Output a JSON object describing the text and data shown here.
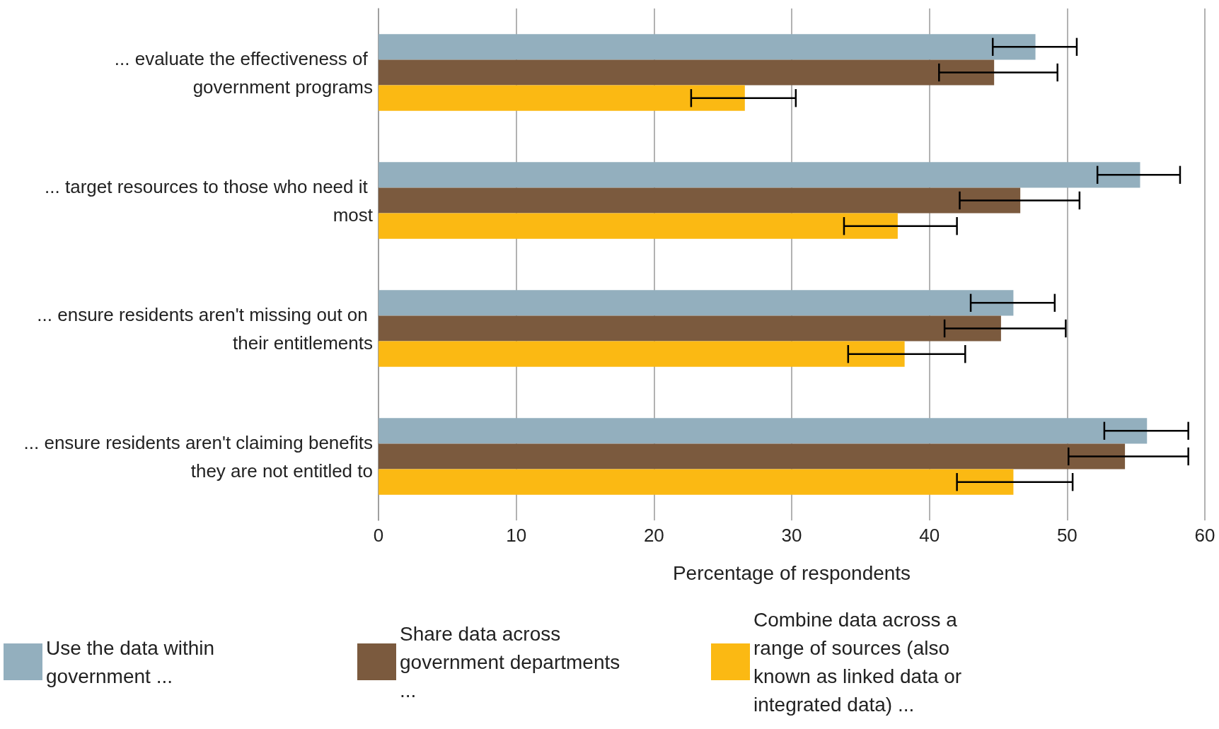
{
  "chart_data": {
    "type": "bar",
    "orientation": "horizontal",
    "xlabel": "Percentage of respondents",
    "categories": [
      "... evaluate the effectiveness of government programs",
      "... target resources to those who need it most",
      "... ensure residents aren't missing out on their entitlements",
      "... ensure residents aren't claiming benefits they are not entitled to"
    ],
    "series": [
      {
        "name": "Use the data within government ...",
        "color": "#93afbe",
        "values": [
          47.7,
          55.3,
          46.1,
          55.8
        ],
        "errors": [
          [
            44.6,
            50.7
          ],
          [
            52.2,
            58.2
          ],
          [
            43.0,
            49.1
          ],
          [
            52.7,
            58.8
          ]
        ]
      },
      {
        "name": "Share data across government departments ...",
        "color": "#7b5a3e",
        "values": [
          44.7,
          46.6,
          45.2,
          54.2
        ],
        "errors": [
          [
            40.7,
            49.3
          ],
          [
            42.2,
            50.9
          ],
          [
            41.1,
            49.9
          ],
          [
            50.1,
            58.8
          ]
        ]
      },
      {
        "name": "Combine data across a range of sources (also known as linked data or integrated data) ...",
        "color": "#fbb913",
        "values": [
          26.6,
          37.7,
          38.2,
          46.1
        ],
        "errors": [
          [
            22.7,
            30.3
          ],
          [
            33.8,
            42.0
          ],
          [
            34.1,
            42.6
          ],
          [
            42.0,
            50.4
          ]
        ]
      }
    ],
    "xlim": [
      0,
      60
    ],
    "xticks": [
      0,
      10,
      20,
      30,
      40,
      50,
      60
    ],
    "grid": "x",
    "legend": "bottom"
  }
}
